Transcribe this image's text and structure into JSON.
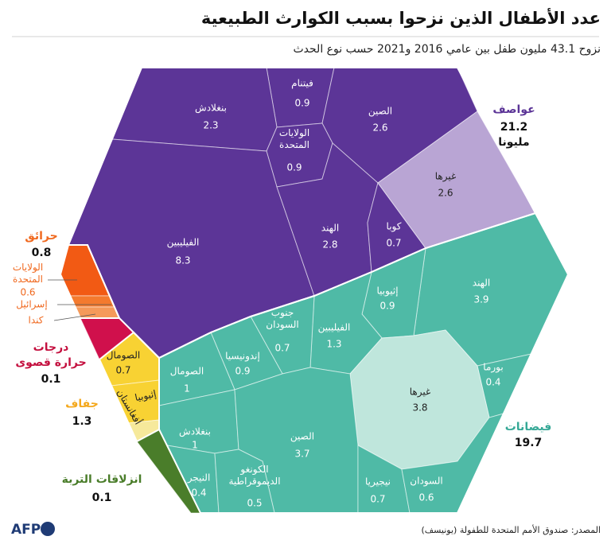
{
  "chart_data": {
    "type": "voronoi-treemap",
    "title": "عدد الأطفال الذين نزحوا بسبب  الكوارث الطبيعية",
    "subtitle": "نزوح 43.1 مليون طفل بين عامي 2016 و2021 حسب نوع الحدث",
    "groups": [
      {
        "name": "عواصف",
        "value": 21.2,
        "value_label": "21.2\nمليونا",
        "color": "#5c3597",
        "children": [
          {
            "name": "فيتنام",
            "value": 0.9
          },
          {
            "name": "بنغلادش",
            "value": 2.3
          },
          {
            "name": "الصين",
            "value": 2.6
          },
          {
            "name": "الولايات\nالمتحدة",
            "value": 0.9
          },
          {
            "name": "الفيليبين",
            "value": 8.3
          },
          {
            "name": "الهند",
            "value": 2.8
          },
          {
            "name": "كوبا",
            "value": 0.7
          },
          {
            "name": "غيرها",
            "value": 2.6,
            "color": "#b9a5d4"
          }
        ]
      },
      {
        "name": "فيضانات",
        "value": 19.7,
        "color": "#4fbaa6",
        "children": [
          {
            "name": "الهند",
            "value": 3.9
          },
          {
            "name": "إثيوبيا",
            "value": 0.9
          },
          {
            "name": "الفيليبين",
            "value": 1.3
          },
          {
            "name": "جنوب\nالسودان",
            "value": 0.7
          },
          {
            "name": "إندونيسيا",
            "value": 0.9
          },
          {
            "name": "الصومال",
            "value": 1
          },
          {
            "name": "بورما",
            "value": 0.4
          },
          {
            "name": "غيرها",
            "value": 3.8,
            "color": "#bfe6dc"
          },
          {
            "name": "بنغلادش",
            "value": 1
          },
          {
            "name": "الصين",
            "value": 3.7
          },
          {
            "name": "النيجر",
            "value": 0.4
          },
          {
            "name": "الكونغو\nالديموقراطية",
            "value": 0.5
          },
          {
            "name": "نيجيريا",
            "value": 0.7
          },
          {
            "name": "السودان",
            "value": 0.6
          }
        ]
      },
      {
        "name": "حرائق",
        "value": 0.8,
        "color": "#f0691f",
        "children": [
          {
            "name": "الولايات\nالمتحدة",
            "value": 0.6,
            "color": "#f25a14"
          },
          {
            "name": "إسرائيل",
            "value": 0.1,
            "color": "#f47a2e"
          },
          {
            "name": "كندا",
            "value": 0.1,
            "color": "#f59a5a"
          }
        ]
      },
      {
        "name": "درجات\nحرارة قصوى",
        "value": 0.1,
        "color": "#d0104c",
        "children": []
      },
      {
        "name": "جفاف",
        "value": 1.3,
        "color": "#f4a81c",
        "children": [
          {
            "name": "الصومال",
            "value": 0.7,
            "color": "#f8d233"
          },
          {
            "name": "إثيوبيا",
            "value": 0.4,
            "color": "#f8d233"
          },
          {
            "name": "أفغانستان",
            "value": 0.2,
            "color": "#f6e99b"
          }
        ]
      },
      {
        "name": "انزلاقات التربة",
        "value": 0.1,
        "color": "#4a7d2a",
        "children": []
      }
    ],
    "source": "المصدر: صندوق الأمم المتحدة للطفولة (يونيسف)",
    "logo": "AFP"
  }
}
